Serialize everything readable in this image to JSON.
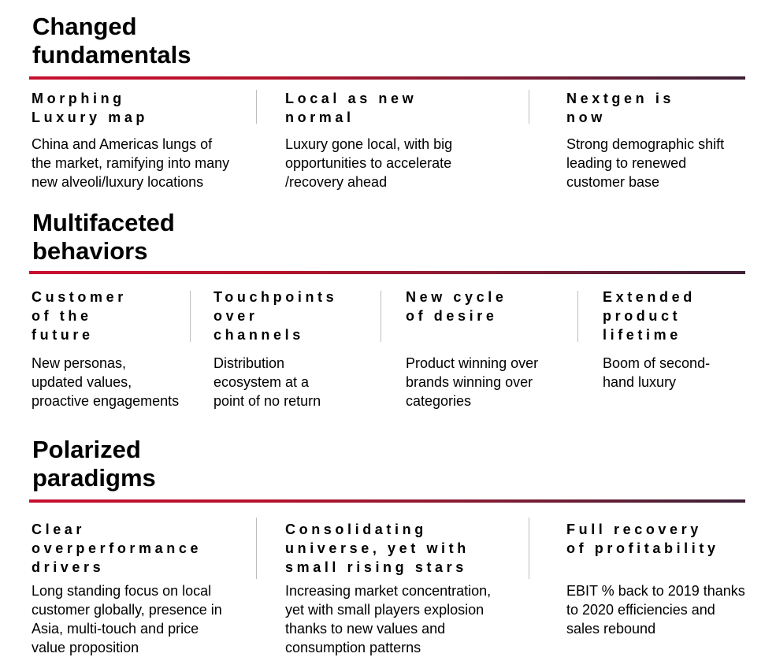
{
  "sections": [
    {
      "title": "Changed\nfundamentals",
      "columns": [
        {
          "heading": "Morphing\nLuxury map",
          "body": "China and Americas lungs of\nthe market, ramifying into many\nnew alveoli/luxury locations"
        },
        {
          "heading": "Local as new\nnormal",
          "body": "Luxury gone local, with big\nopportunities to accelerate\n/recovery ahead"
        },
        {
          "heading": "Nextgen is\nnow",
          "body": "Strong demographic shift\nleading to renewed\ncustomer base"
        }
      ]
    },
    {
      "title": "Multifaceted\nbehaviors",
      "columns": [
        {
          "heading": "Customer\nof the\nfuture",
          "body": "New personas,\nupdated values,\nproactive engagements"
        },
        {
          "heading": "Touchpoints\nover\nchannels",
          "body": "Distribution\necosystem at a\npoint of no return"
        },
        {
          "heading": "New cycle\nof desire",
          "body": "Product winning over\nbrands winning over\ncategories"
        },
        {
          "heading": "Extended\nproduct\nlifetime",
          "body": "Boom of second-\nhand luxury"
        }
      ]
    },
    {
      "title": "Polarized\nparadigms",
      "columns": [
        {
          "heading": "Clear\noverperformance\ndrivers",
          "body": "Long standing focus on local\ncustomer globally, presence in\nAsia, multi-touch and price\nvalue proposition"
        },
        {
          "heading": "Consolidating\nuniverse, yet with\nsmall rising stars",
          "body": "Increasing market concentration,\nyet with small players explosion\nthanks to new values and\nconsumption patterns"
        },
        {
          "heading": "Full recovery\nof profitability",
          "body": "EBIT % back to 2019 thanks\nto 2020 efficiencies and\nsales rebound"
        }
      ]
    }
  ],
  "colors": {
    "rule_start": "#c8102e",
    "rule_end": "#3d2137",
    "divider": "#bdbdbd"
  }
}
